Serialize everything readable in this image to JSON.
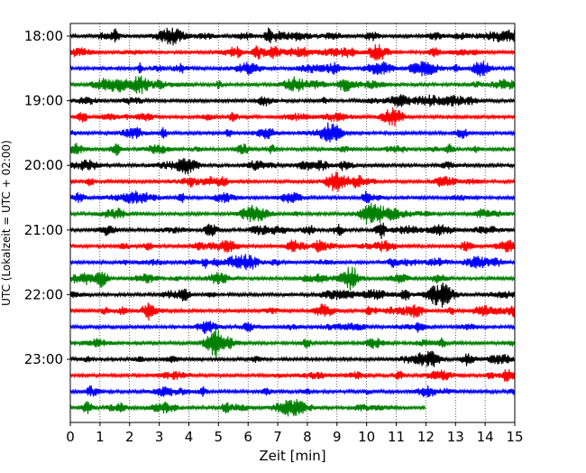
{
  "chart_data": {
    "type": "line",
    "title": "",
    "xlabel": "Zeit  [min]",
    "ylabel": "UTC (Lokalzeit = UTC + 02:00)",
    "xlim": [
      0,
      15
    ],
    "x_ticks": [
      "0",
      "1",
      "2",
      "3",
      "4",
      "5",
      "6",
      "7",
      "8",
      "9",
      "10",
      "11",
      "12",
      "13",
      "14",
      "15"
    ],
    "y_tick_labels": [
      "18:00",
      "19:00",
      "20:00",
      "21:00",
      "22:00",
      "23:00"
    ],
    "y_tick_rows": [
      0,
      4,
      8,
      12,
      16,
      20
    ],
    "vertical_grid": "dotted",
    "trace_colors": [
      "#000000",
      "#ff0000",
      "#0000ff",
      "#008000"
    ],
    "rows": [
      {
        "start": "18:00",
        "minutes": 15
      },
      {
        "start": "18:15",
        "minutes": 15
      },
      {
        "start": "18:30",
        "minutes": 15
      },
      {
        "start": "18:45",
        "minutes": 15
      },
      {
        "start": "19:00",
        "minutes": 15
      },
      {
        "start": "19:15",
        "minutes": 15
      },
      {
        "start": "19:30",
        "minutes": 15
      },
      {
        "start": "19:45",
        "minutes": 15
      },
      {
        "start": "20:00",
        "minutes": 15
      },
      {
        "start": "20:15",
        "minutes": 15
      },
      {
        "start": "20:30",
        "minutes": 15
      },
      {
        "start": "20:45",
        "minutes": 15
      },
      {
        "start": "21:00",
        "minutes": 15
      },
      {
        "start": "21:15",
        "minutes": 15
      },
      {
        "start": "21:30",
        "minutes": 15
      },
      {
        "start": "21:45",
        "minutes": 15
      },
      {
        "start": "22:00",
        "minutes": 15
      },
      {
        "start": "22:15",
        "minutes": 15
      },
      {
        "start": "22:30",
        "minutes": 15
      },
      {
        "start": "22:45",
        "minutes": 15
      },
      {
        "start": "23:00",
        "minutes": 15
      },
      {
        "start": "23:15",
        "minutes": 15
      },
      {
        "start": "23:30",
        "minutes": 15
      },
      {
        "start": "23:45",
        "minutes": 12
      }
    ]
  }
}
